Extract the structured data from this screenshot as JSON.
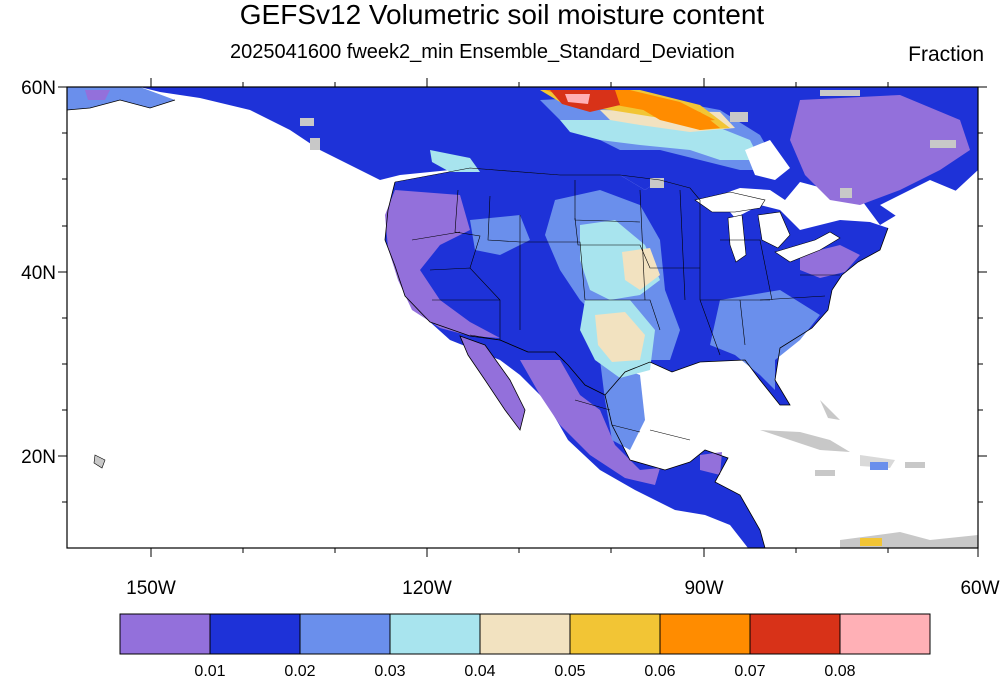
{
  "title": "GEFSv12 Volumetric soil moisture content",
  "subtitle": "2025041600 fweek2_min Ensemble_Standard_Deviation",
  "units": "Fraction",
  "map": {
    "projection": "cylindrical-equidistant",
    "lon_range": [
      -159,
      -60
    ],
    "lat_range": [
      10,
      60
    ],
    "lat_ticks": [
      "60N",
      "40N",
      "20N"
    ],
    "lon_ticks": [
      "150W",
      "120W",
      "90W",
      "60W"
    ]
  },
  "colorbar": {
    "colors": [
      "#9370db",
      "#1e32d8",
      "#6a8fec",
      "#a8e4ee",
      "#f2e2c0",
      "#f2c535",
      "#ff8c00",
      "#d83218",
      "#ffb0b6"
    ],
    "labels": [
      "0.01",
      "0.02",
      "0.03",
      "0.04",
      "0.05",
      "0.06",
      "0.07",
      "0.08"
    ]
  }
}
